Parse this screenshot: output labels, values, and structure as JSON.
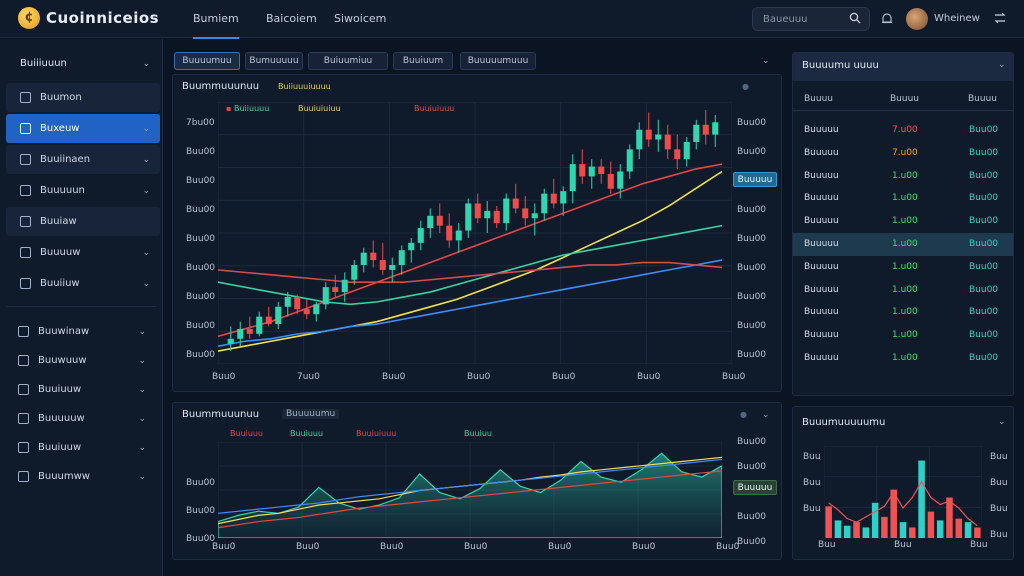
{
  "app": {
    "logo_glyph": "¢",
    "title": "Cuoinniceios"
  },
  "nav": [
    {
      "label": "Bumiem",
      "active": true
    },
    {
      "label": "Baicoiem",
      "active": false
    },
    {
      "label": "Siwoicem",
      "active": false
    }
  ],
  "search": {
    "placeholder": "Baueuuu"
  },
  "user": {
    "name": "Wheinew"
  },
  "sidebar": {
    "header": "Buiiiuuun",
    "items": [
      {
        "label": "Buumon",
        "state": "shade",
        "chevron": false
      },
      {
        "label": "Buxeuw",
        "state": "active",
        "chevron": true
      },
      {
        "label": "Buuiinaen",
        "state": "shade",
        "chevron": true
      },
      {
        "label": "Buuuuun",
        "state": "normal",
        "chevron": true
      },
      {
        "label": "Buuiaw",
        "state": "shade",
        "chevron": false
      },
      {
        "label": "Buuuuw",
        "state": "normal",
        "chevron": true
      },
      {
        "label": "Buuiiuw",
        "state": "normal",
        "chevron": true
      }
    ],
    "items2": [
      {
        "label": "Buuwinaw",
        "chevron": true
      },
      {
        "label": "Buuwuuw",
        "chevron": true
      },
      {
        "label": "Buuiuuw",
        "chevron": true
      },
      {
        "label": "Buuuuuw",
        "chevron": true
      },
      {
        "label": "Buuiuuw",
        "chevron": true
      },
      {
        "label": "Buuumww",
        "chevron": true
      }
    ]
  },
  "tabs": [
    "Buuuumuu",
    "Bumuuuuu",
    "Buiuumiuu",
    "Buuiuum",
    "Buuuuumuuu"
  ],
  "main_chart": {
    "title": "Buummuuunuu",
    "legend": [
      {
        "text": "Buiiuuuiuuuu",
        "color": "#e8d34a"
      },
      {
        "text": "Buiiuuuu",
        "color": "#38d3a0"
      },
      {
        "text": "Buuiuiuiuu",
        "color": "#e8d34a"
      },
      {
        "text": "Buuiuiuuu",
        "color": "#e84545"
      }
    ],
    "y_left": [
      "7bu00",
      "Buu00",
      "Buu00",
      "Buu00",
      "Buu00",
      "Buu00",
      "Buu00",
      "Buu00",
      "Buu00"
    ],
    "y_right": [
      "Buu00",
      "Buu00",
      "Buu00",
      "Buu00",
      "Buu00",
      "Buu00",
      "Buu00",
      "Buu00",
      "Buu00"
    ],
    "x_labels": [
      "Buu0",
      "7uu0",
      "Buu0",
      "Buu0",
      "Buu0",
      "Buu0",
      "Buu0"
    ],
    "price_tag": "Buuuuu"
  },
  "sub_chart": {
    "title": "Buummuuunuu",
    "badge": "Buuuuumu",
    "legend": [
      {
        "text": "Buuiuuu",
        "color": "#e84545"
      },
      {
        "text": "Buuiuuu",
        "color": "#38d3a0"
      },
      {
        "text": "Buuiuiuuu",
        "color": "#e84545"
      },
      {
        "text": "Buuiuu",
        "color": "#38d3a0"
      }
    ],
    "y_left": [
      "Buu00",
      "Buu00",
      "Buu00"
    ],
    "y_right": [
      "Buu00",
      "Buu00",
      "Buu00",
      "Buu00",
      "Buu00"
    ],
    "x_labels": [
      "Buu0",
      "Buu0",
      "Buu0",
      "Buu0",
      "Buu0",
      "Buu0",
      "Buu0"
    ],
    "price_tag": "Buuuuu"
  },
  "table": {
    "title": "Buuuumu uuuu",
    "headers": [
      "Buuuu",
      "Buuuu",
      "Buuuu"
    ],
    "rows": [
      {
        "name": "Buuuuu",
        "v1": "7.u00",
        "v2": "Buu00",
        "v1_color": "#ff5252",
        "highlight": false
      },
      {
        "name": "Buuuuu",
        "v1": "7.u00",
        "v2": "Buu00",
        "v1_color": "#f5a623",
        "highlight": false
      },
      {
        "name": "Buuuuu",
        "v1": "1.u00",
        "v2": "Buu00",
        "v1_color": "#2ee86a",
        "highlight": false
      },
      {
        "name": "Buuuuu",
        "v1": "1.u00",
        "v2": "Buu00",
        "v1_color": "#2ee86a",
        "highlight": false
      },
      {
        "name": "Buuuuu",
        "v1": "1.u00",
        "v2": "Buu00",
        "v1_color": "#2ee86a",
        "highlight": false
      },
      {
        "name": "Buuuuu",
        "v1": "1.u00",
        "v2": "Buu00",
        "v1_color": "#2ee86a",
        "highlight": true
      },
      {
        "name": "Buuuuu",
        "v1": "1.u00",
        "v2": "Buu00",
        "v1_color": "#2ee86a",
        "highlight": false
      },
      {
        "name": "Buuuuu",
        "v1": "1.u00",
        "v2": "Buu00",
        "v1_color": "#2ee86a",
        "highlight": false
      },
      {
        "name": "Buuuuu",
        "v1": "1.u00",
        "v2": "Buu00",
        "v1_color": "#2ee86a",
        "highlight": false
      },
      {
        "name": "Buuuuu",
        "v1": "1.u00",
        "v2": "Buu00",
        "v1_color": "#2ee86a",
        "highlight": false
      },
      {
        "name": "Buuuuu",
        "v1": "1.u00",
        "v2": "Buu00",
        "v1_color": "#2ee86a",
        "highlight": false
      }
    ]
  },
  "bar_panel": {
    "title": "Buuumuuuuumu",
    "y_left": [
      "Buu",
      "Buu",
      "Buu"
    ],
    "y_right": [
      "Buu",
      "Buu",
      "Buu",
      "Buu"
    ],
    "x_labels": [
      "Buu",
      "Buu",
      "Buu"
    ]
  },
  "chart_data": [
    {
      "type": "candlestick",
      "title": "Buummuuunuu",
      "candles": [
        [
          5,
          12,
          2,
          7
        ],
        [
          7,
          14,
          4,
          11
        ],
        [
          11,
          16,
          7,
          9
        ],
        [
          9,
          18,
          8,
          16
        ],
        [
          16,
          20,
          12,
          13
        ],
        [
          13,
          22,
          11,
          20
        ],
        [
          20,
          26,
          16,
          24
        ],
        [
          24,
          25,
          17,
          19
        ],
        [
          19,
          23,
          15,
          17
        ],
        [
          17,
          22,
          14,
          21
        ],
        [
          21,
          30,
          19,
          28
        ],
        [
          28,
          33,
          24,
          26
        ],
        [
          26,
          34,
          22,
          31
        ],
        [
          31,
          39,
          29,
          37
        ],
        [
          37,
          44,
          34,
          42
        ],
        [
          42,
          47,
          36,
          39
        ],
        [
          39,
          46,
          33,
          35
        ],
        [
          35,
          40,
          30,
          37
        ],
        [
          37,
          45,
          33,
          43
        ],
        [
          43,
          48,
          38,
          46
        ],
        [
          46,
          55,
          43,
          52
        ],
        [
          52,
          60,
          48,
          57
        ],
        [
          57,
          62,
          50,
          53
        ],
        [
          53,
          58,
          44,
          47
        ],
        [
          47,
          54,
          42,
          51
        ],
        [
          51,
          64,
          48,
          62
        ],
        [
          62,
          66,
          54,
          56
        ],
        [
          56,
          63,
          50,
          59
        ],
        [
          59,
          61,
          52,
          54
        ],
        [
          54,
          66,
          51,
          64
        ],
        [
          64,
          70,
          58,
          60
        ],
        [
          60,
          65,
          53,
          56
        ],
        [
          56,
          62,
          49,
          58
        ],
        [
          58,
          68,
          55,
          66
        ],
        [
          66,
          72,
          60,
          62
        ],
        [
          62,
          69,
          57,
          67
        ],
        [
          67,
          82,
          62,
          78
        ],
        [
          78,
          84,
          70,
          73
        ],
        [
          73,
          80,
          68,
          77
        ],
        [
          77,
          80,
          70,
          74
        ],
        [
          74,
          79,
          66,
          68
        ],
        [
          68,
          78,
          64,
          75
        ],
        [
          75,
          86,
          72,
          84
        ],
        [
          84,
          95,
          80,
          92
        ],
        [
          92,
          99,
          85,
          88
        ],
        [
          88,
          96,
          83,
          90
        ],
        [
          90,
          94,
          80,
          84
        ],
        [
          84,
          90,
          76,
          80
        ],
        [
          80,
          89,
          77,
          87
        ],
        [
          87,
          96,
          84,
          94
        ],
        [
          94,
          100,
          86,
          90
        ],
        [
          90,
          98,
          85,
          95
        ]
      ],
      "lines": [
        {
          "color": "#f2e04a",
          "values": [
            2,
            4,
            6,
            8,
            10,
            12,
            14,
            17,
            20,
            23,
            27,
            31,
            35,
            40,
            45,
            50,
            55,
            61,
            68,
            75
          ]
        },
        {
          "color": "#3f8cff",
          "values": [
            4,
            6,
            7,
            9,
            10,
            12,
            13,
            15,
            17,
            19,
            21,
            23,
            25,
            27,
            29,
            31,
            33,
            35,
            37,
            39
          ]
        },
        {
          "color": "#e84545",
          "values": [
            8,
            11,
            14,
            18,
            22,
            26,
            30,
            34,
            38,
            42,
            46,
            50,
            54,
            58,
            62,
            66,
            70,
            73,
            76,
            78
          ]
        },
        {
          "color": "#38d3a0",
          "values": [
            30,
            28,
            26,
            24,
            22,
            21,
            22,
            24,
            26,
            29,
            32,
            35,
            38,
            41,
            43,
            45,
            47,
            49,
            51,
            53
          ]
        },
        {
          "color": "#d34b4b",
          "values": [
            35,
            34,
            33,
            32,
            31,
            30,
            30,
            30,
            31,
            32,
            33,
            34,
            35,
            36,
            37,
            37,
            38,
            38,
            37,
            36
          ]
        }
      ]
    },
    {
      "type": "area",
      "title": "Buummuuunuu",
      "values": [
        12,
        18,
        22,
        20,
        26,
        45,
        30,
        24,
        28,
        35,
        58,
        40,
        34,
        44,
        62,
        46,
        40,
        52,
        70,
        55,
        50,
        62,
        78,
        60,
        55,
        66
      ],
      "lines": [
        {
          "color": "#f2e04a",
          "values": [
            10,
            14,
            18,
            20,
            24,
            28,
            30,
            32,
            34,
            38,
            42,
            44,
            46,
            48,
            50,
            52,
            55,
            57,
            60,
            62,
            64,
            66,
            68,
            70,
            72,
            74
          ]
        },
        {
          "color": "#e84545",
          "values": [
            6,
            9,
            12,
            14,
            16,
            19,
            22,
            25,
            27,
            29,
            31,
            33,
            35,
            37,
            39,
            41,
            43,
            45,
            47,
            49,
            51,
            53,
            55,
            57,
            59,
            61
          ]
        },
        {
          "color": "#3f8cff",
          "values": [
            20,
            22,
            24,
            26,
            28,
            30,
            33,
            36,
            38,
            40,
            42,
            44,
            46,
            48,
            50,
            52,
            54,
            56,
            58,
            60,
            62,
            64,
            66,
            68,
            70,
            72
          ]
        }
      ]
    },
    {
      "type": "bar",
      "title": "Buuumuuuuumu",
      "values": [
        36,
        20,
        14,
        18,
        12,
        40,
        24,
        55,
        18,
        12,
        88,
        30,
        20,
        46,
        22,
        18,
        12
      ],
      "colors": [
        "#f25252",
        "#2fd0c8",
        "#2fd0c8",
        "#f25252",
        "#2fd0c8",
        "#2fd0c8",
        "#f25252",
        "#f25252",
        "#2fd0c8",
        "#f25252",
        "#2fd0c8",
        "#f25252",
        "#2fd0c8",
        "#f25252",
        "#f25252",
        "#2fd0c8",
        "#f25252"
      ],
      "line": {
        "color": "#f25252",
        "values": [
          40,
          32,
          22,
          18,
          24,
          30,
          36,
          52,
          34,
          46,
          64,
          46,
          38,
          42,
          34,
          22,
          14
        ]
      }
    }
  ]
}
